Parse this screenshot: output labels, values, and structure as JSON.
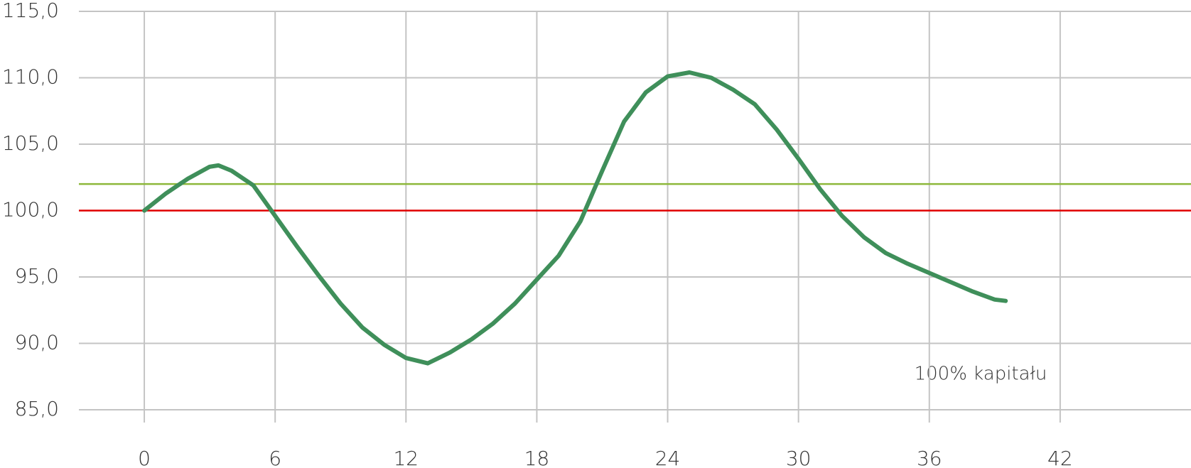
{
  "chart_data": {
    "type": "line",
    "annotation": "100% kapitału",
    "xlim": [
      -3,
      48
    ],
    "ylim": [
      85,
      115
    ],
    "xticks": [
      0,
      6,
      12,
      18,
      24,
      30,
      36,
      42
    ],
    "yticks": [
      {
        "value": 85,
        "label": "85,0"
      },
      {
        "value": 90,
        "label": "90,0"
      },
      {
        "value": 95,
        "label": "95,0"
      },
      {
        "value": 100,
        "label": "100,0"
      },
      {
        "value": 105,
        "label": "105,0"
      },
      {
        "value": 110,
        "label": "110,0"
      },
      {
        "value": 115,
        "label": "115,0"
      }
    ],
    "grid": true,
    "reference_lines": [
      {
        "value": 102,
        "color": "#8db83a"
      },
      {
        "value": 100,
        "color": "#e00000"
      }
    ],
    "series": [
      {
        "color": "#3f8f5a",
        "x": [
          0,
          1,
          2,
          3,
          3.4,
          4,
          5,
          6,
          7,
          8,
          9,
          10,
          11,
          12,
          13,
          14,
          15,
          16,
          17,
          18,
          19,
          20,
          21,
          22,
          23,
          24,
          25,
          26,
          27,
          28,
          29,
          30,
          31,
          32,
          33,
          34,
          35,
          36,
          37,
          38,
          39,
          39.5
        ],
        "values": [
          100,
          101.3,
          102.4,
          103.3,
          103.4,
          103.0,
          101.9,
          99.6,
          97.3,
          95.1,
          93.0,
          91.2,
          89.9,
          88.9,
          88.5,
          89.3,
          90.3,
          91.5,
          93.0,
          94.8,
          96.6,
          99.2,
          103.0,
          106.7,
          108.9,
          110.1,
          110.4,
          110.0,
          109.1,
          108.0,
          106.1,
          103.9,
          101.6,
          99.6,
          98.0,
          96.8,
          96.0,
          95.3,
          94.6,
          93.9,
          93.3,
          93.2
        ]
      }
    ]
  }
}
